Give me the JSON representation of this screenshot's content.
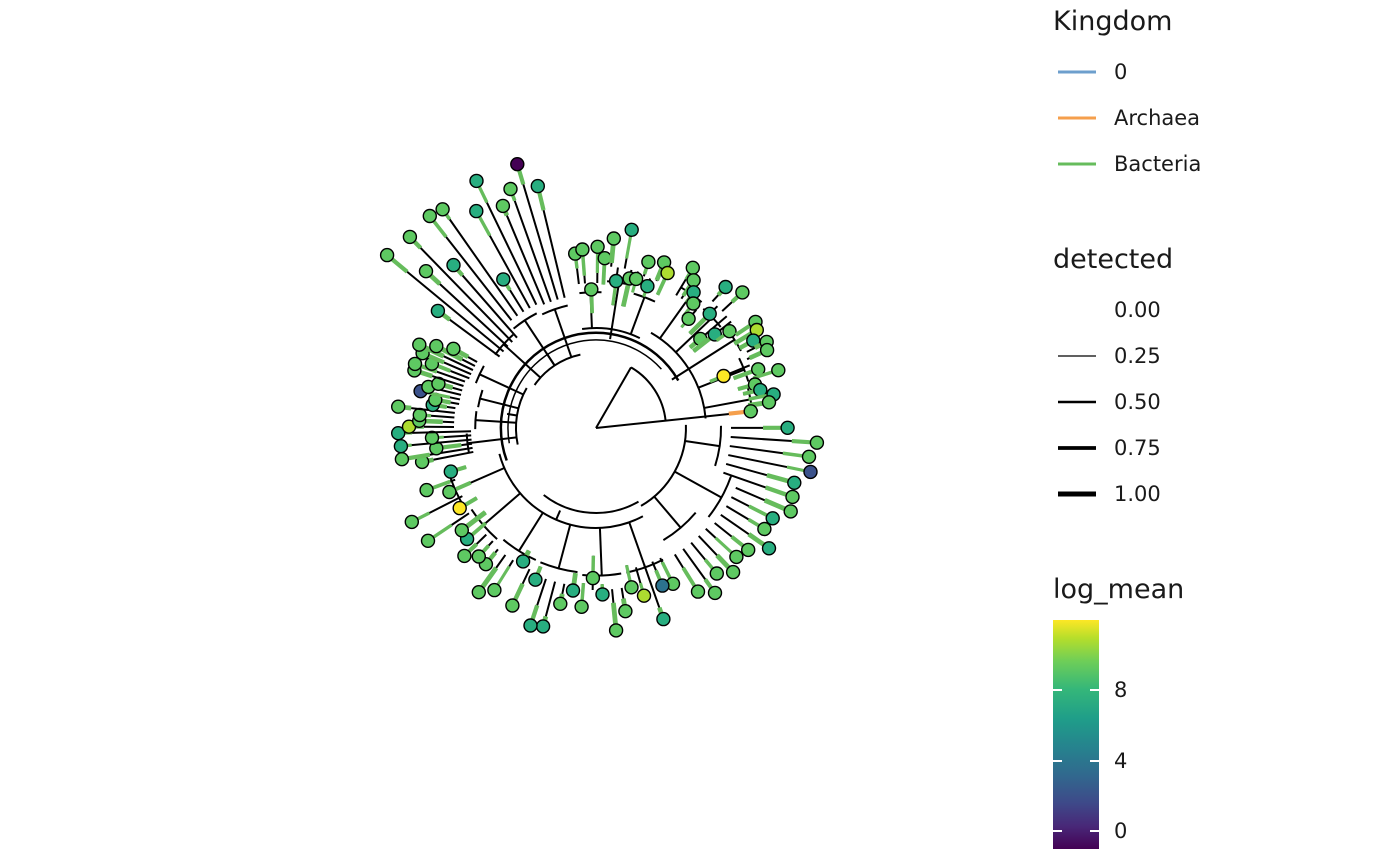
{
  "legends": {
    "kingdom": {
      "title": "Kingdom",
      "items": [
        {
          "label": "0",
          "color": "#6d9fcd"
        },
        {
          "label": "Archaea",
          "color": "#f59f4c"
        },
        {
          "label": "Bacteria",
          "color": "#66bc5c"
        }
      ]
    },
    "detected": {
      "title": "detected",
      "items": [
        {
          "label": "0.00",
          "value": 0.0
        },
        {
          "label": "0.25",
          "value": 0.25
        },
        {
          "label": "0.50",
          "value": 0.5
        },
        {
          "label": "0.75",
          "value": 0.75
        },
        {
          "label": "1.00",
          "value": 1.0
        }
      ]
    },
    "log_mean": {
      "title": "log_mean",
      "ticks": [
        {
          "label": "8",
          "value": 8
        },
        {
          "label": "4",
          "value": 4
        },
        {
          "label": "0",
          "value": 0
        }
      ],
      "range": [
        -1,
        12
      ],
      "palette": "viridis"
    }
  },
  "tree": {
    "layout": "circular",
    "branch_color": "#000000",
    "tip_outline_color": "#000000",
    "tip_count": 140
  }
}
